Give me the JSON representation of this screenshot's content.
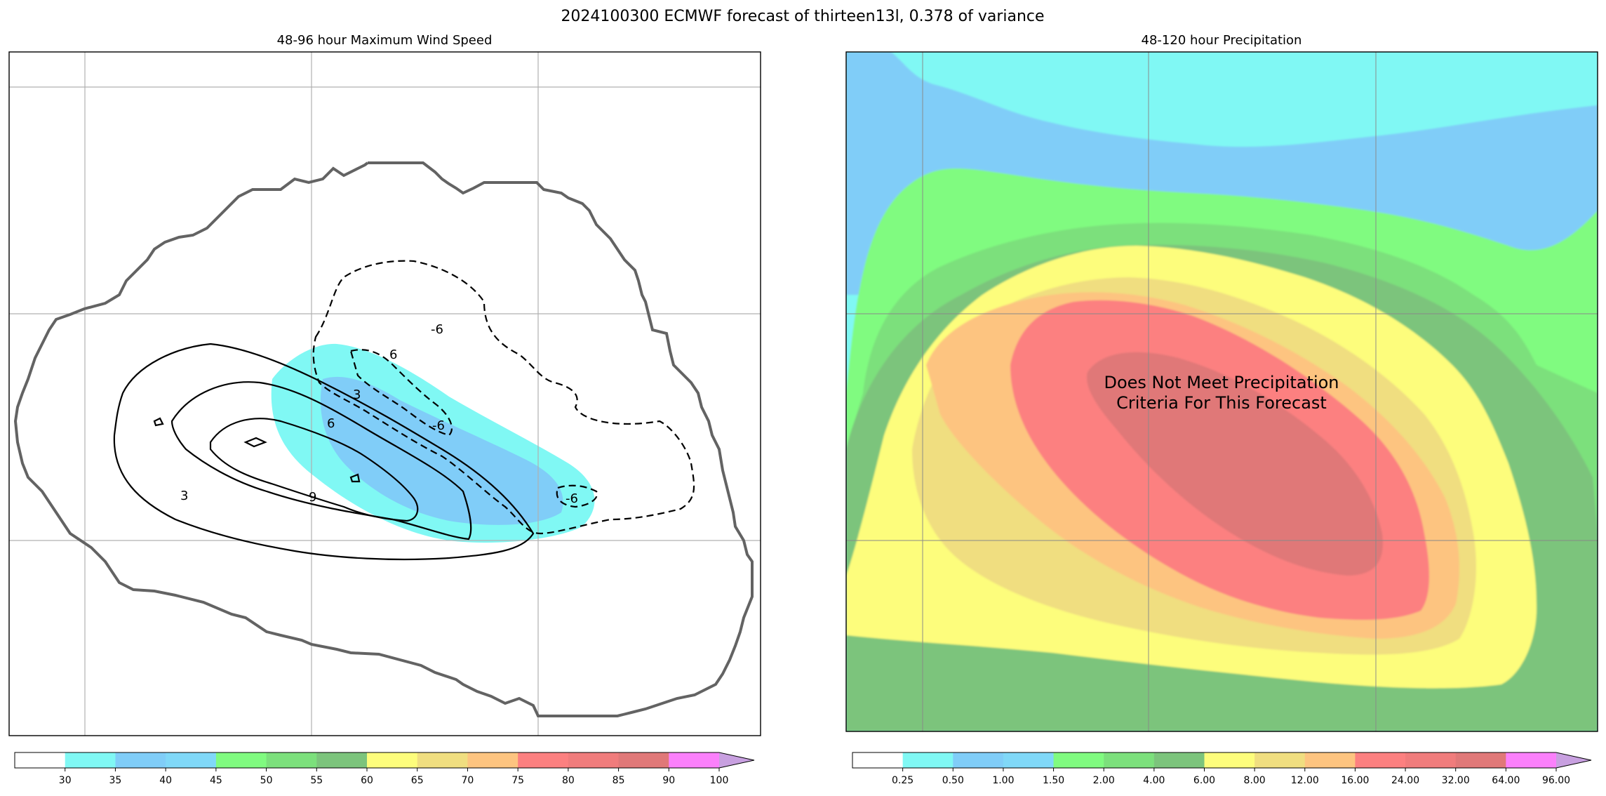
{
  "figure": {
    "title": "2024100300 ECMWF forecast of thirteen13l, 0.378 of variance"
  },
  "chart_data": [
    {
      "type": "heatmap",
      "title": "48-96 hour Maximum Wind Speed",
      "xlabel": "",
      "ylabel": "",
      "grid": true,
      "colorbar": {
        "ticks": [
          "30",
          "35",
          "40",
          "45",
          "50",
          "55",
          "60",
          "65",
          "70",
          "75",
          "80",
          "85",
          "90",
          "100"
        ],
        "colors": [
          "#ffffff",
          "#80f8f4",
          "#80cdf8",
          "#80d8f8",
          "#80fb80",
          "#7ce07c",
          "#7cc47c",
          "#fdfd7c",
          "#f0de80",
          "#fdc480",
          "#fc8080",
          "#f07c7c",
          "#e07878",
          "#fb80fb",
          "#c8a0e0"
        ],
        "extend": "max"
      },
      "contour_labels": [
        "3",
        "6",
        "9",
        "3",
        "6",
        "-6",
        "-6",
        "-6"
      ],
      "colors": {
        "outline": "#636363",
        "contour": "#000000",
        "grid": "#b0b0b0"
      }
    },
    {
      "type": "heatmap",
      "title": "48-120 hour Precipitation",
      "xlabel": "",
      "ylabel": "",
      "grid": true,
      "annotation": [
        "Does Not Meet Precipitation",
        "Criteria For This Forecast"
      ],
      "colorbar": {
        "ticks": [
          "0.25",
          "0.50",
          "1.00",
          "1.50",
          "2.00",
          "4.00",
          "6.00",
          "8.00",
          "12.00",
          "16.00",
          "24.00",
          "32.00",
          "64.00",
          "96.00"
        ],
        "colors": [
          "#ffffff",
          "#80f8f4",
          "#80cdf8",
          "#80d8f8",
          "#80fb80",
          "#7ce07c",
          "#7cc47c",
          "#fdfd7c",
          "#f0de80",
          "#fdc480",
          "#fc8080",
          "#f07c7c",
          "#e07878",
          "#fb80fb",
          "#c8a0e0"
        ],
        "extend": "max"
      },
      "colors": {
        "grid": "#888888"
      }
    }
  ]
}
